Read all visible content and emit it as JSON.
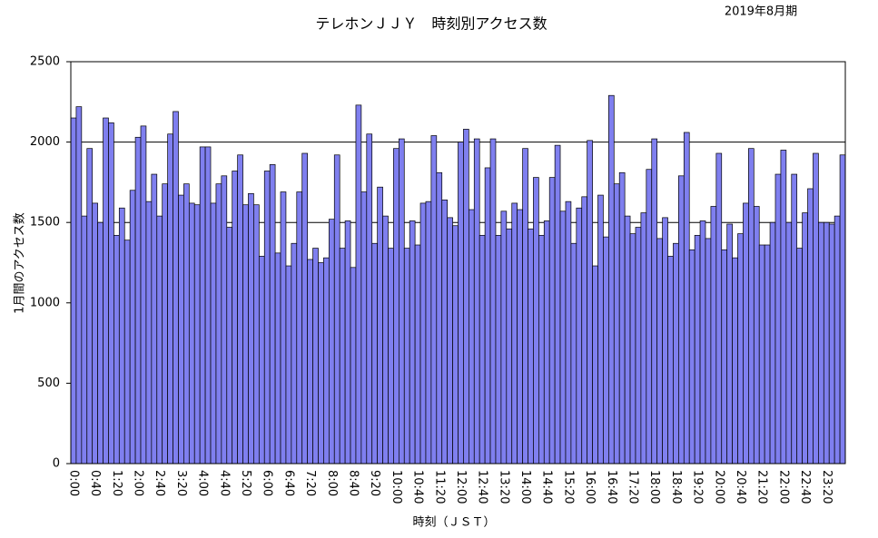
{
  "chart_data": {
    "type": "bar",
    "title": "テレホンＪＪＹ　時刻別アクセス数",
    "subtitle": "2019年8月期",
    "y_label": "1月間のアクセス数",
    "x_label": "時刻（ＪＳＴ）",
    "color": "#7f7fef",
    "grid": true,
    "ylim": [
      0,
      2500
    ],
    "yticks": [
      0,
      500,
      1000,
      1500,
      2000,
      2500
    ],
    "categories": [
      "0:00",
      null,
      null,
      null,
      "0:40",
      null,
      null,
      null,
      "1:20",
      null,
      null,
      null,
      "2:00",
      null,
      null,
      null,
      "2:40",
      null,
      null,
      null,
      "3:20",
      null,
      null,
      null,
      "4:00",
      null,
      null,
      null,
      "4:40",
      null,
      null,
      null,
      "5:20",
      null,
      null,
      null,
      "6:00",
      null,
      null,
      null,
      "6:40",
      null,
      null,
      null,
      "7:20",
      null,
      null,
      null,
      "8:00",
      null,
      null,
      null,
      "8:40",
      null,
      null,
      null,
      "9:20",
      null,
      null,
      null,
      "10:00",
      null,
      null,
      null,
      "10:40",
      null,
      null,
      null,
      "11:20",
      null,
      null,
      null,
      "12:00",
      null,
      null,
      null,
      "12:40",
      null,
      null,
      null,
      "13:20",
      null,
      null,
      null,
      "14:00",
      null,
      null,
      null,
      "14:40",
      null,
      null,
      null,
      "15:20",
      null,
      null,
      null,
      "16:00",
      null,
      null,
      null,
      "16:40",
      null,
      null,
      null,
      "17:20",
      null,
      null,
      null,
      "18:00",
      null,
      null,
      null,
      "18:40",
      null,
      null,
      null,
      "19:20",
      null,
      null,
      null,
      "20:00",
      null,
      null,
      null,
      "20:40",
      null,
      null,
      null,
      "21:20",
      null,
      null,
      null,
      "22:00",
      null,
      null,
      null,
      "22:40",
      null,
      null,
      null,
      "23:20",
      null,
      null,
      null
    ],
    "values": [
      2150,
      2220,
      1540,
      1960,
      1620,
      1500,
      2150,
      2120,
      1420,
      1590,
      1390,
      1700,
      2030,
      2100,
      1630,
      1800,
      1540,
      1740,
      2050,
      2190,
      1670,
      1740,
      1620,
      1610,
      1970,
      1970,
      1620,
      1740,
      1790,
      1470,
      1820,
      1920,
      1610,
      1680,
      1610,
      1290,
      1820,
      1860,
      1310,
      1690,
      1230,
      1370,
      1690,
      1930,
      1270,
      1340,
      1250,
      1280,
      1520,
      1920,
      1340,
      1510,
      1220,
      2230,
      1690,
      2050,
      1370,
      1720,
      1540,
      1340,
      1960,
      2020,
      1340,
      1510,
      1360,
      1620,
      1630,
      2040,
      1810,
      1640,
      1530,
      1480,
      2000,
      2080,
      1580,
      2020,
      1420,
      1840,
      2020,
      1420,
      1570,
      1460,
      1620,
      1580,
      1960,
      1460,
      1780,
      1420,
      1510,
      1780,
      1980,
      1570,
      1630,
      1370,
      1590,
      1660,
      2010,
      1230,
      1670,
      1410,
      2290,
      1740,
      1810,
      1540,
      1430,
      1470,
      1560,
      1830,
      2020,
      1400,
      1530,
      1290,
      1370,
      1790,
      2060,
      1330,
      1420,
      1510,
      1400,
      1600,
      1930,
      1330,
      1490,
      1280,
      1430,
      1620,
      1960,
      1600,
      1360,
      1360,
      1500,
      1800,
      1950,
      1500,
      1800,
      1340,
      1560,
      1710,
      1930,
      1500,
      1500,
      1490,
      1540,
      1920
    ]
  }
}
